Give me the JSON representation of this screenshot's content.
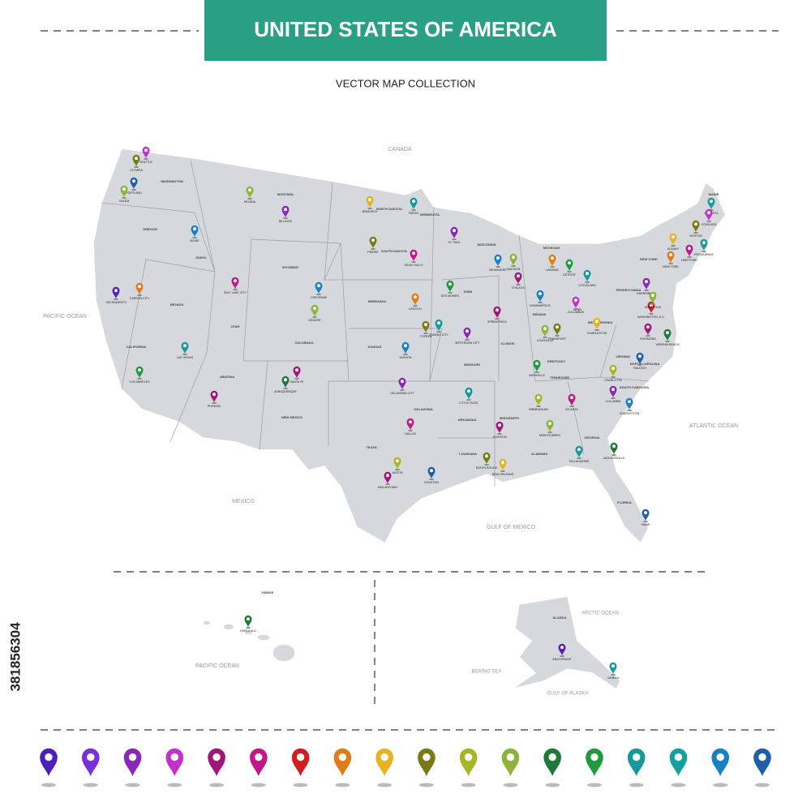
{
  "header": {
    "title": "UNITED STATES OF AMERICA",
    "subtitle": "VECTOR MAP COLLECTION"
  },
  "stock_id": "381856304",
  "map_labels": [
    "CANADA",
    "PACIFIC OCEAN",
    "ATLANTIC OCEAN",
    "MEXICO",
    "GULF OF MEXICO",
    "HAWAII",
    "PACIFIC OCEAN",
    "ARCTIC OCEAN",
    "BERING SEA",
    "GULF OF ALASKA",
    "ALASKA",
    "WASHINGTON",
    "OREGON",
    "CALIFORNIA",
    "NEVADA",
    "IDAHO",
    "MONTANA",
    "WYOMING",
    "UTAH",
    "ARIZONA",
    "COLORADO",
    "NEW MEXICO",
    "NORTH DAKOTA",
    "SOUTH DAKOTA",
    "NEBRASKA",
    "KANSAS",
    "OKLAHOMA",
    "TEXAS",
    "MINNESOTA",
    "IOWA",
    "MISSOURI",
    "ARKANSAS",
    "LOUISIANA",
    "WISCONSIN",
    "ILLINOIS",
    "MICHIGAN",
    "INDIANA",
    "OHIO",
    "KENTUCKY",
    "TENNESSEE",
    "MISSISSIPPI",
    "ALABAMA",
    "GEORGIA",
    "FLORIDA",
    "SOUTH CAROLINA",
    "NORTH CAROLINA",
    "VIRGINIA",
    "WEST VIRGINIA",
    "PENNSYLVANIA",
    "NEW YORK",
    "MAINE"
  ],
  "pins": [
    {
      "label": "SEATTLE",
      "color": "#c52fd0"
    },
    {
      "label": "OLYMPIA",
      "color": "#7a7a15"
    },
    {
      "label": "PORTLAND",
      "color": "#1f5fa8"
    },
    {
      "label": "SALEM",
      "color": "#8ab53a"
    },
    {
      "label": "BOISE",
      "color": "#1a80c4"
    },
    {
      "label": "HELENA",
      "color": "#8ab53a"
    },
    {
      "label": "BILLINGS",
      "color": "#8a27b8"
    },
    {
      "label": "BISMARCK",
      "color": "#e8b21f"
    },
    {
      "label": "FARGO",
      "color": "#16999d"
    },
    {
      "label": "SACRAMENTO",
      "color": "#5a1fb0"
    },
    {
      "label": "CARSON CITY",
      "color": "#e07b16"
    },
    {
      "label": "SALT LAKE CITY",
      "color": "#c2168a"
    },
    {
      "label": "CHEYENNE",
      "color": "#1a80c4"
    },
    {
      "label": "DENVER",
      "color": "#8ab53a"
    },
    {
      "label": "LAS VEGAS",
      "color": "#16999d"
    },
    {
      "label": "LOS ANGELES",
      "color": "#1f9b3b"
    },
    {
      "label": "PHOENIX",
      "color": "#a0167a"
    },
    {
      "label": "ALBUQUERQUE",
      "color": "#1f7a3a"
    },
    {
      "label": "SANTA FE",
      "color": "#a0167a"
    },
    {
      "label": "PIERRE",
      "color": "#7a7a15"
    },
    {
      "label": "SIOUX FALLS",
      "color": "#c2168a"
    },
    {
      "label": "LINCOLN",
      "color": "#e07b16"
    },
    {
      "label": "TOPEKA",
      "color": "#7a7a15"
    },
    {
      "label": "KANSAS CITY",
      "color": "#16999d"
    },
    {
      "label": "WICHITA",
      "color": "#1a80c4"
    },
    {
      "label": "OKLAHOMA CITY",
      "color": "#8a27b8"
    },
    {
      "label": "DALLAS",
      "color": "#c2168a"
    },
    {
      "label": "AUSTIN",
      "color": "#a8b526"
    },
    {
      "label": "SAN ANTONIO",
      "color": "#a0167a"
    },
    {
      "label": "HOUSTON",
      "color": "#1f5fa8"
    },
    {
      "label": "ST. PAUL",
      "color": "#8a27b8"
    },
    {
      "label": "DES MOINES",
      "color": "#1f9b3b"
    },
    {
      "label": "JEFFERSON CITY",
      "color": "#8a27b8"
    },
    {
      "label": "LITTLE ROCK",
      "color": "#16999d"
    },
    {
      "label": "JACKSON",
      "color": "#a0167a"
    },
    {
      "label": "BATON ROUGE",
      "color": "#7a7a15"
    },
    {
      "label": "NEW ORLEANS",
      "color": "#e8b21f"
    },
    {
      "label": "MILWAUKEE",
      "color": "#1a80c4"
    },
    {
      "label": "MADISON",
      "color": "#8ab53a"
    },
    {
      "label": "CHICAGO",
      "color": "#a0167a"
    },
    {
      "label": "SPRINGFIELD",
      "color": "#a0167a"
    },
    {
      "label": "LANSING",
      "color": "#e07b16"
    },
    {
      "label": "DETROIT",
      "color": "#1f9b3b"
    },
    {
      "label": "INDIANAPOLIS",
      "color": "#1a80c4"
    },
    {
      "label": "LOUISVILLE",
      "color": "#8ab53a"
    },
    {
      "label": "FRANKFORT",
      "color": "#7a7a15"
    },
    {
      "label": "NASHVILLE",
      "color": "#1f9b3b"
    },
    {
      "label": "BIRMINGHAM",
      "color": "#a8b526"
    },
    {
      "label": "MONTGOMERY",
      "color": "#8ab53a"
    },
    {
      "label": "ATLANTA",
      "color": "#c2168a"
    },
    {
      "label": "CLEVELAND",
      "color": "#16999d"
    },
    {
      "label": "COLUMBUS",
      "color": "#c52fd0"
    },
    {
      "label": "CHARLESTON",
      "color": "#e8b21f"
    },
    {
      "label": "TALLAHASSEE",
      "color": "#16999d"
    },
    {
      "label": "JACKSONVILLE",
      "color": "#1f7a3a"
    },
    {
      "label": "MIAMI",
      "color": "#1f5fa8"
    },
    {
      "label": "COLUMBIA",
      "color": "#8a27b8"
    },
    {
      "label": "CHARLESTON",
      "color": "#1a80c4"
    },
    {
      "label": "CHARLOTTE",
      "color": "#a8b526"
    },
    {
      "label": "RALEIGH",
      "color": "#1f5fa8"
    },
    {
      "label": "RICHMOND",
      "color": "#a0167a"
    },
    {
      "label": "VIRGINIA BEACH",
      "color": "#1f7a3a"
    },
    {
      "label": "WASHINGTON, D.C.",
      "color": "#d01f1f"
    },
    {
      "label": "HARRISBURG",
      "color": "#8a27b8"
    },
    {
      "label": "ANNAPOLIS",
      "color": "#8ab53a"
    },
    {
      "label": "ALBANY",
      "color": "#e8b21f"
    },
    {
      "label": "NEW YORK",
      "color": "#e07b16"
    },
    {
      "label": "BOSTON",
      "color": "#7a7a15"
    },
    {
      "label": "AUGUSTA",
      "color": "#16999d"
    },
    {
      "label": "CONCORD",
      "color": "#c52fd0"
    },
    {
      "label": "PROVIDENCE",
      "color": "#16999d"
    },
    {
      "label": "HARTFORD",
      "color": "#c2168a"
    },
    {
      "label": "HONOLULU",
      "color": "#1f7a3a"
    },
    {
      "label": "JUNEAU",
      "color": "#16999d"
    },
    {
      "label": "ANCHORAGE",
      "color": "#5a1fb0"
    }
  ],
  "legend_colors": [
    "#4b1fb8",
    "#7a2fd8",
    "#8a27b8",
    "#c52fd0",
    "#a0167a",
    "#c2168a",
    "#d01f1f",
    "#e07b16",
    "#e8b21f",
    "#7a7a15",
    "#a8b526",
    "#8ab53a",
    "#1f7a3a",
    "#1f9b3b",
    "#16999d",
    "#13a0a0",
    "#1a80c4",
    "#1f5fa8"
  ]
}
